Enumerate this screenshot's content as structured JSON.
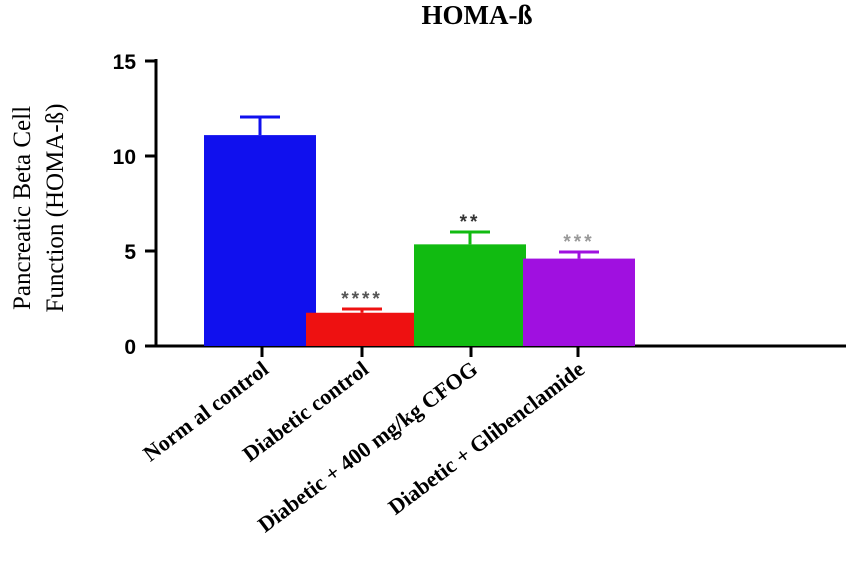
{
  "chart_data": {
    "type": "bar",
    "title": "HOMA-ß",
    "ylabel_line1": "Pancreatic Beta Cell",
    "ylabel_line2": "Function (HOMA-ß)",
    "xlabel": "",
    "ylim": [
      0,
      15
    ],
    "yticks": [
      "0",
      "5",
      "10",
      "15"
    ],
    "grid": false,
    "categories": [
      "Norm al control",
      "Diabetic control",
      "Diabetic + 400 mg/kg CFOG",
      "Diabetic + Glibenclamide"
    ],
    "values": [
      11.1,
      1.75,
      5.35,
      4.6
    ],
    "errors": [
      0.95,
      0.2,
      0.65,
      0.35
    ],
    "significance": [
      "",
      "****",
      "**",
      "***"
    ],
    "colors": [
      "#1010ee",
      "#ee1111",
      "#11bb11",
      "#a010e0"
    ],
    "significance_colors": [
      "#000000",
      "#555555",
      "#333333",
      "#999999"
    ]
  }
}
